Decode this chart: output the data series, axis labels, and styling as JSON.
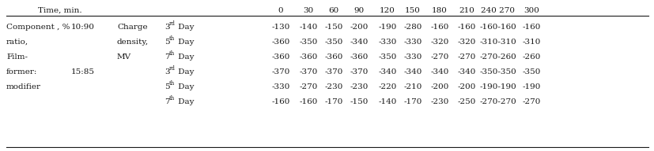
{
  "rows": [
    {
      "col0": "Component , %",
      "col1": "10:90",
      "col2": "Charge",
      "col3_base": "3",
      "col3_sup": "rd",
      "day": "Day",
      "values": [
        "-130",
        "-140",
        "-150",
        "-200",
        "-190",
        "-280",
        "-160",
        "-160",
        "-160-160",
        "-160"
      ]
    },
    {
      "col0": "ratio,",
      "col1": "",
      "col2": "density,",
      "col3_base": "5",
      "col3_sup": "th",
      "day": "Day",
      "values": [
        "-360",
        "-350",
        "-350",
        "-340",
        "-330",
        "-330",
        "-320",
        "-320",
        "-310-310",
        "-310"
      ]
    },
    {
      "col0": "Film-",
      "col1": "",
      "col2": "MV",
      "col3_base": "7",
      "col3_sup": "th",
      "day": "Day",
      "values": [
        "-360",
        "-360",
        "-360",
        "-360",
        "-350",
        "-330",
        "-270",
        "-270",
        "-270-260",
        "-260"
      ]
    },
    {
      "col0": "former:",
      "col1": "15:85",
      "col2": "",
      "col3_base": "3",
      "col3_sup": "rd",
      "day": "Day",
      "values": [
        "-370",
        "-370",
        "-370",
        "-370",
        "-340",
        "-340",
        "-340",
        "-340",
        "-350-350",
        "-350"
      ]
    },
    {
      "col0": "modifier",
      "col1": "",
      "col2": "",
      "col3_base": "5",
      "col3_sup": "th",
      "day": "Day",
      "values": [
        "-330",
        "-270",
        "-230",
        "-230",
        "-220",
        "-210",
        "-200",
        "-200",
        "-190-190",
        "-190"
      ]
    },
    {
      "col0": "",
      "col1": "",
      "col2": "",
      "col3_base": "7",
      "col3_sup": "th",
      "day": "Day",
      "values": [
        "-160",
        "-160",
        "-170",
        "-150",
        "-140",
        "-170",
        "-230",
        "-250",
        "-270-270",
        "-270"
      ]
    }
  ],
  "time_labels": [
    "0",
    "30",
    "60",
    "90",
    "120",
    "150",
    "180",
    "210",
    "240 270",
    "300"
  ],
  "font_size": 7.5,
  "bg_color": "#ffffff",
  "text_color": "#1a1a1a"
}
